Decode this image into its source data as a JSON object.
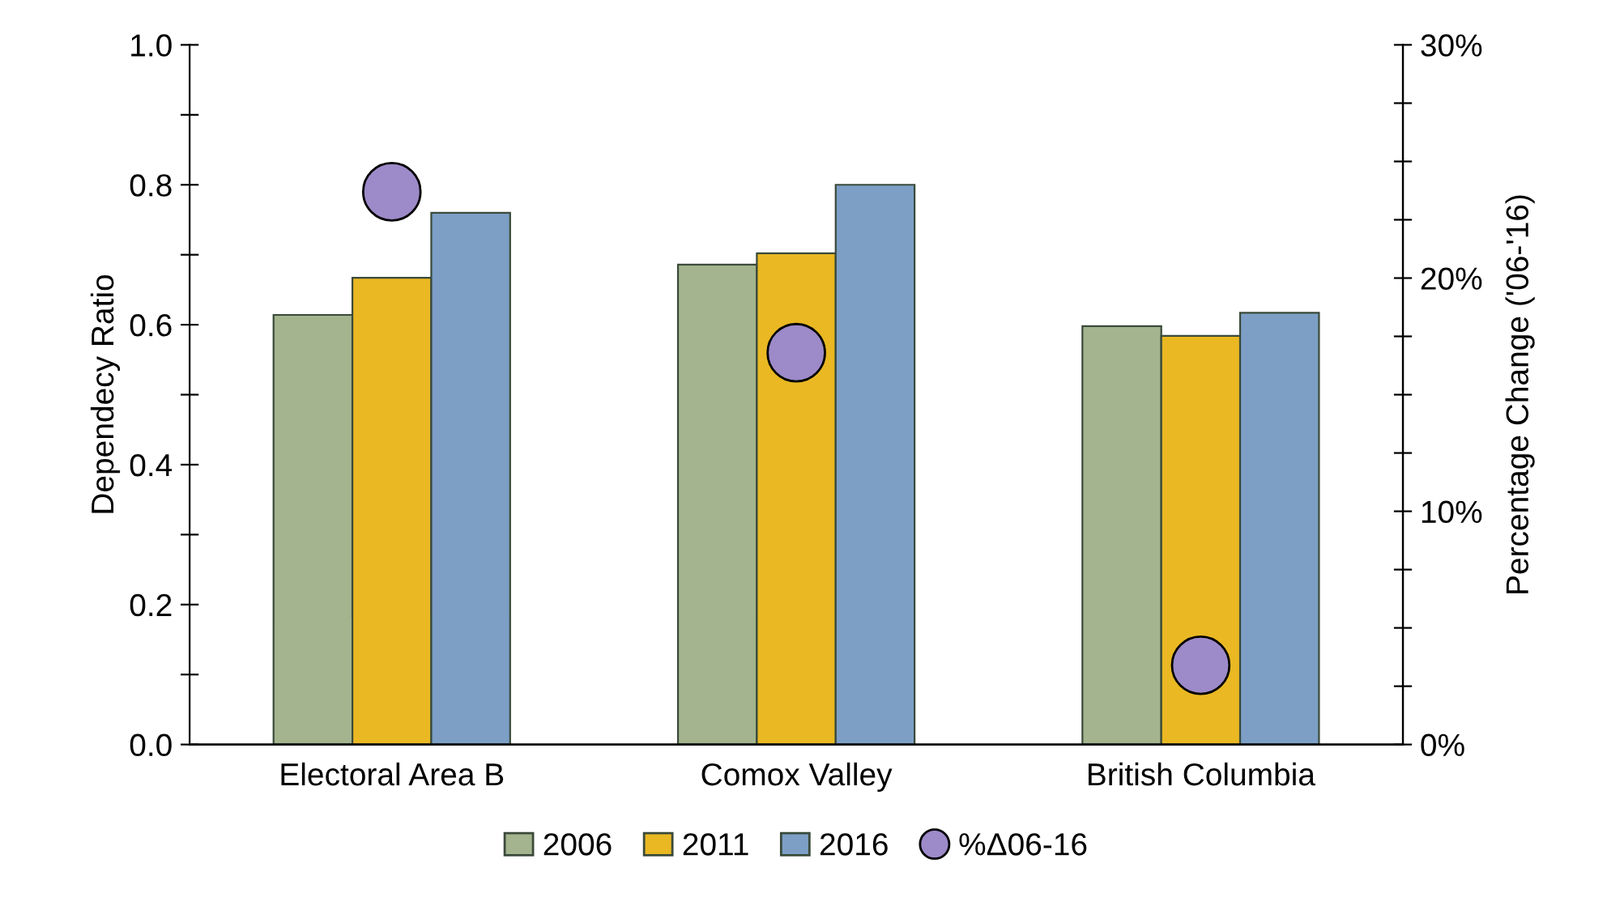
{
  "chart_data": {
    "type": "bar",
    "categories": [
      "Electoral Area B",
      "Comox Valley",
      "British Columbia"
    ],
    "ylabel": "Dependecy Ratio",
    "y2label": "Percentage Change ('06-'16)",
    "series": [
      {
        "name": "2006",
        "color": "#a3b48e",
        "values": [
          0.614,
          0.686,
          0.598
        ]
      },
      {
        "name": "2011",
        "color": "#e9b823",
        "values": [
          0.667,
          0.702,
          0.584
        ]
      },
      {
        "name": "2016",
        "color": "#7d9fc6",
        "values": [
          0.76,
          0.8,
          0.617
        ]
      },
      {
        "name": "%Δ06-16",
        "type": "scatter",
        "axis": "y2",
        "color": "#9d8ac9",
        "marker": "circle",
        "x": [
          "Electoral Area B",
          "Comox Valley",
          "British Columbia"
        ],
        "values": [
          23.7,
          16.8,
          3.4
        ]
      }
    ],
    "ylim": [
      0,
      1.0
    ],
    "yticks": [
      {
        "value": 0,
        "label": "0.0"
      },
      {
        "value": 0.1,
        "label": null
      },
      0.2,
      {
        "value": 0.3,
        "label": null
      },
      0.4,
      {
        "value": 0.5,
        "label": null
      },
      0.6,
      {
        "value": 0.7,
        "label": null
      },
      0.8,
      {
        "value": 0.9,
        "label": null
      },
      {
        "value": 1,
        "label": "1.0"
      }
    ],
    "y2lim": [
      0,
      30
    ],
    "y2ticks": [
      {
        "value": 0,
        "label": "0%"
      },
      {
        "value": 2.5,
        "label": null
      },
      {
        "value": 5,
        "label": null
      },
      {
        "value": 7.5,
        "label": null
      },
      {
        "value": 10,
        "label": "10%"
      },
      {
        "value": 12.5,
        "label": null
      },
      {
        "value": 15,
        "label": null
      },
      {
        "value": 17.5,
        "label": null
      },
      {
        "value": 20,
        "label": "20%"
      },
      {
        "value": 22.5,
        "label": null
      },
      {
        "value": 25,
        "label": null
      },
      {
        "value": 27.5,
        "label": null
      },
      {
        "value": 30,
        "label": "30%"
      }
    ],
    "legend": "bottom",
    "grid": false
  }
}
